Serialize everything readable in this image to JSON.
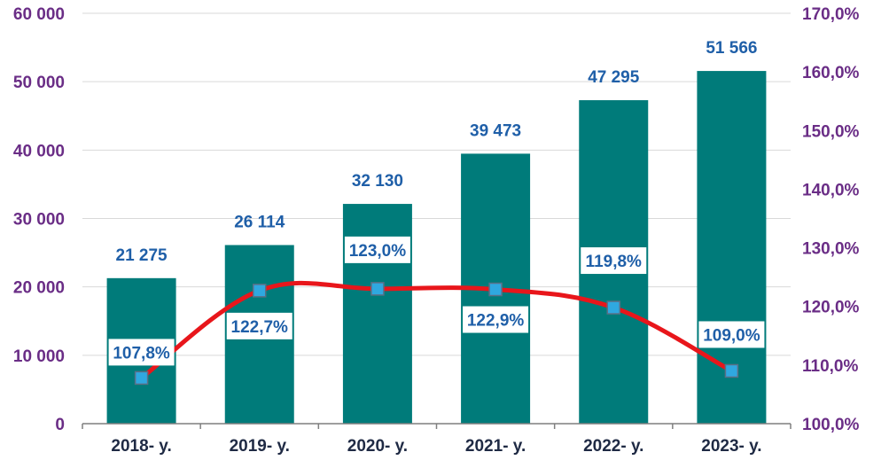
{
  "chart_data": {
    "type": "bar",
    "categories": [
      "2018- y.",
      "2019- y.",
      "2020- y.",
      "2021- y.",
      "2022- y.",
      "2023- y."
    ],
    "series": [
      {
        "type": "bar",
        "axis": "left",
        "values": [
          21275,
          26114,
          32130,
          39473,
          47295,
          51566
        ],
        "labels": [
          "21 275",
          "26 114",
          "32 130",
          "39 473",
          "47 295",
          "51 566"
        ],
        "color": "#007b7a"
      },
      {
        "type": "line",
        "axis": "right",
        "values": [
          107.8,
          122.7,
          123.0,
          122.9,
          119.8,
          109.0
        ],
        "labels": [
          "107,8%",
          "122,7%",
          "123,0%",
          "122,9%",
          "119,8%",
          "109,0%"
        ],
        "color": "#e8161b",
        "marker_color": "#2fa8e0"
      }
    ],
    "y_left": {
      "lim": [
        0,
        60000
      ],
      "ticks": [
        0,
        10000,
        20000,
        30000,
        40000,
        50000,
        60000
      ],
      "tick_labels": [
        "0",
        "10 000",
        "20 000",
        "30 000",
        "40 000",
        "50 000",
        "60 000"
      ]
    },
    "y_right": {
      "lim": [
        100,
        170
      ],
      "ticks": [
        100,
        110,
        120,
        130,
        140,
        150,
        160,
        170
      ],
      "tick_labels": [
        "100,0%",
        "110,0%",
        "120,0%",
        "130,0%",
        "140,0%",
        "150,0%",
        "160,0%",
        "170,0%"
      ]
    },
    "grid": true,
    "legend": "none",
    "title": "",
    "xlabel": "",
    "ylabel": ""
  }
}
